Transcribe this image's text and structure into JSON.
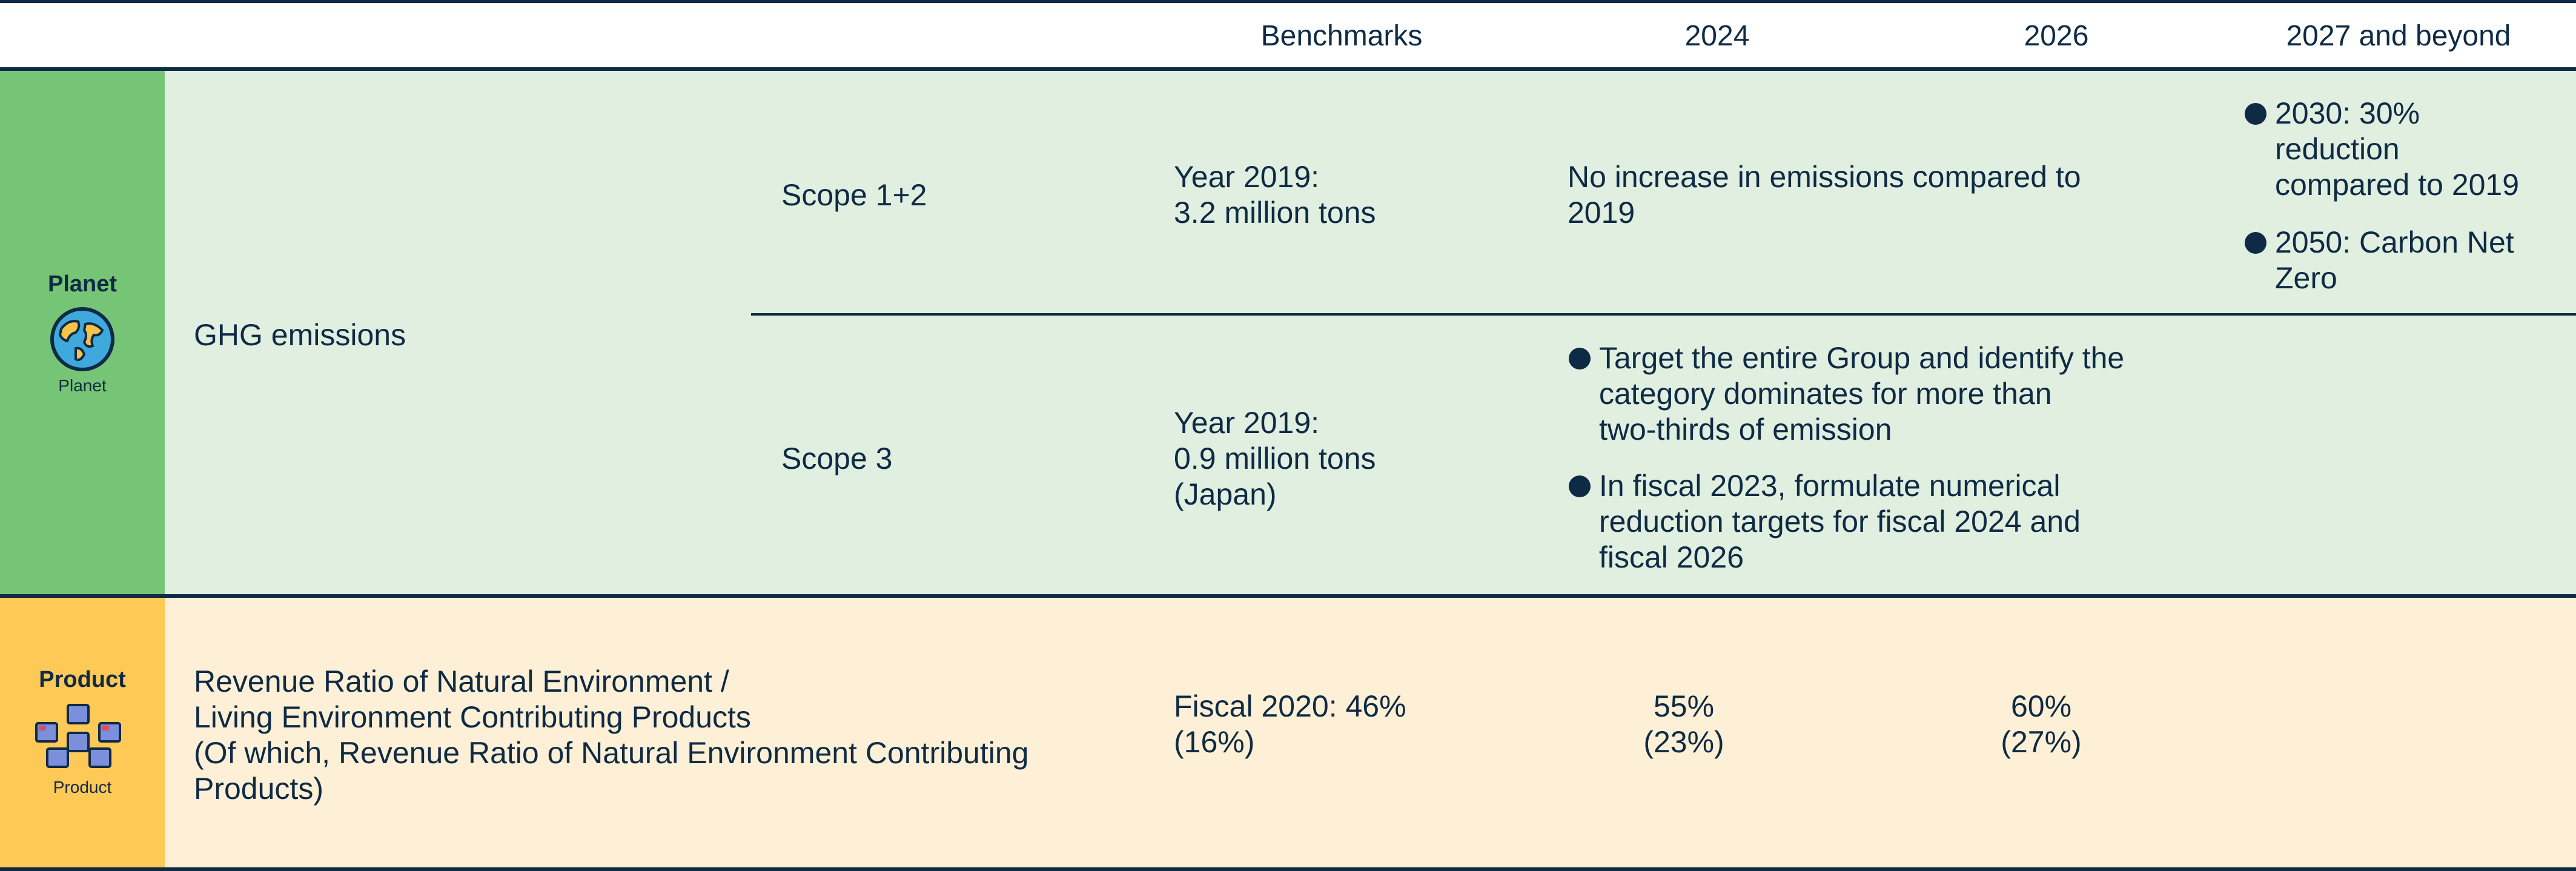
{
  "header": {
    "benchmarks": "Benchmarks",
    "y2024": "2024",
    "y2026": "2026",
    "y2027": "2027 and beyond"
  },
  "planet": {
    "label": "Planet",
    "icon_caption": "Planet",
    "metric": "GHG emissions",
    "scope12": {
      "scope": "Scope 1+2",
      "benchmark": "Year 2019:\n3.2 million tons",
      "target_2024_2026": "No increase in emissions compared to\n2019",
      "beyond": [
        "2030: 30%\nreduction\ncompared to 2019",
        "2050: Carbon Net\nZero"
      ]
    },
    "scope3": {
      "scope": "Scope 3",
      "benchmark": "Year 2019:\n0.9 million tons\n(Japan)",
      "targets": [
        "Target the entire Group and identify the\ncategory dominates for more than\ntwo-thirds of emission",
        "In fiscal 2023, formulate numerical\nreduction targets for fiscal 2024 and\nfiscal 2026"
      ]
    }
  },
  "product": {
    "label": "Product",
    "icon_caption": "Product",
    "metric": "Revenue Ratio of Natural Environment /\nLiving Environment Contributing Products\n(Of which, Revenue Ratio of Natural Environment Contributing\nProducts)",
    "benchmark": "Fiscal 2020: 46%\n(16%)",
    "v2024": "55%\n(23%)",
    "v2026": "60%\n(27%)"
  },
  "colors": {
    "navy": "#0f2a44",
    "planet_tag": "#76c577",
    "planet_bg": "#e0efe0",
    "product_tag": "#fec957",
    "product_bg": "#fef0d6"
  }
}
